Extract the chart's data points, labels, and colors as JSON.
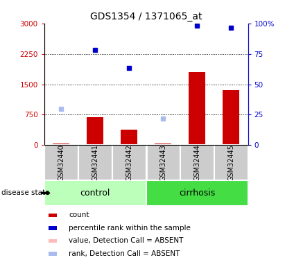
{
  "title": "GDS1354 / 1371065_at",
  "samples": [
    "GSM32440",
    "GSM32441",
    "GSM32442",
    "GSM32443",
    "GSM32444",
    "GSM32445"
  ],
  "bar_values": [
    30,
    680,
    380,
    30,
    1800,
    1350
  ],
  "bar_color": "#cc0000",
  "dot_values_left": [
    null,
    2350,
    1900,
    null,
    2950,
    2900
  ],
  "dot_color": "#0000cc",
  "absent_bar_values": [
    30,
    null,
    null,
    30,
    null,
    null
  ],
  "absent_bar_color": "#ffbbbb",
  "absent_dot_values_left": [
    900,
    null,
    null,
    650,
    null,
    null
  ],
  "absent_dot_color": "#aabbee",
  "ylim_left": [
    0,
    3000
  ],
  "ylim_right": [
    0,
    100
  ],
  "yticks_left": [
    0,
    750,
    1500,
    2250,
    3000
  ],
  "yticks_right": [
    0,
    25,
    50,
    75,
    100
  ],
  "ytick_labels_left": [
    "0",
    "750",
    "1500",
    "2250",
    "3000"
  ],
  "ytick_labels_right": [
    "0",
    "25",
    "50",
    "75",
    "100%"
  ],
  "hlines": [
    750,
    1500,
    2250
  ],
  "left_axis_color": "#cc0000",
  "right_axis_color": "#0000cc",
  "control_color": "#bbffbb",
  "cirrhosis_color": "#44dd44",
  "sample_box_color": "#cccccc",
  "legend_items": [
    {
      "color": "#cc0000",
      "label": "count"
    },
    {
      "color": "#0000cc",
      "label": "percentile rank within the sample"
    },
    {
      "color": "#ffbbbb",
      "label": "value, Detection Call = ABSENT"
    },
    {
      "color": "#aabbee",
      "label": "rank, Detection Call = ABSENT"
    }
  ],
  "disease_state_label": "disease state"
}
